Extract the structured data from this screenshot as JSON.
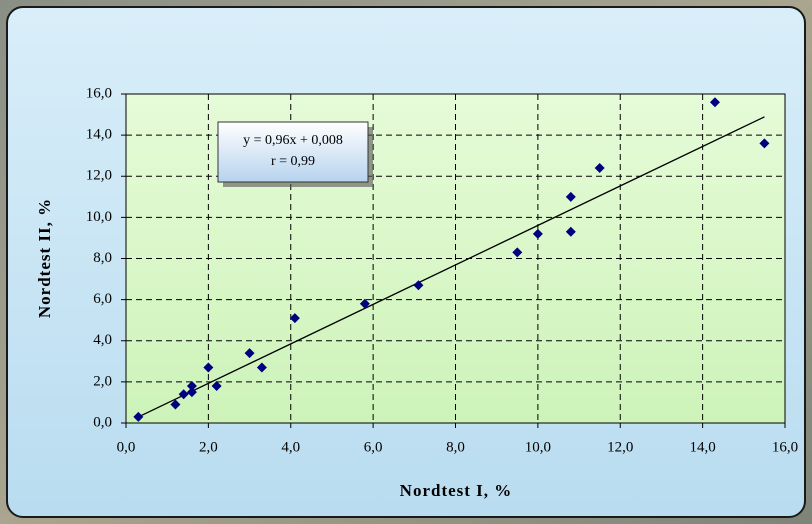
{
  "chart_data": {
    "type": "scatter",
    "x_label": "Nordtest I, %",
    "y_label": "Nordtest II, %",
    "series": [
      {
        "color": "#000080",
        "x": [
          0.3,
          1.2,
          1.4,
          1.6,
          1.6,
          2.0,
          2.2,
          3.0,
          3.3,
          4.1,
          5.8,
          7.1,
          9.5,
          10.0,
          10.8,
          10.8,
          11.5,
          14.3,
          15.5
        ],
        "values": [
          0.3,
          0.9,
          1.4,
          1.8,
          1.5,
          2.7,
          1.8,
          3.4,
          2.7,
          5.1,
          5.8,
          6.7,
          8.3,
          9.2,
          9.3,
          11.0,
          12.4,
          15.6,
          13.6
        ]
      }
    ],
    "trendline": {
      "slope": 0.96,
      "intercept": 0.008,
      "equation": "y = 0,96x + 0,008",
      "r_label": "r = 0,99"
    },
    "xlim": [
      0,
      16
    ],
    "ylim": [
      0,
      16
    ],
    "xticks": [
      {
        "value": 0,
        "label": "0,0"
      },
      {
        "value": 2,
        "label": "2,0"
      },
      {
        "value": 4,
        "label": "4,0"
      },
      {
        "value": 6,
        "label": "6,0"
      },
      {
        "value": 8,
        "label": "8,0"
      },
      {
        "value": 10,
        "label": "10,0"
      },
      {
        "value": 12,
        "label": "12,0"
      },
      {
        "value": 14,
        "label": "14,0"
      },
      {
        "value": 16,
        "label": "16,0"
      }
    ],
    "yticks": [
      {
        "value": 0,
        "label": "0,0"
      },
      {
        "value": 2,
        "label": "2,0"
      },
      {
        "value": 4,
        "label": "4,0"
      },
      {
        "value": 6,
        "label": "6,0"
      },
      {
        "value": 8,
        "label": "8,0"
      },
      {
        "value": 10,
        "label": "10,0"
      },
      {
        "value": 12,
        "label": "12,0"
      },
      {
        "value": 14,
        "label": "14,0"
      },
      {
        "value": 16,
        "label": "16,0"
      }
    ],
    "grid": true
  }
}
